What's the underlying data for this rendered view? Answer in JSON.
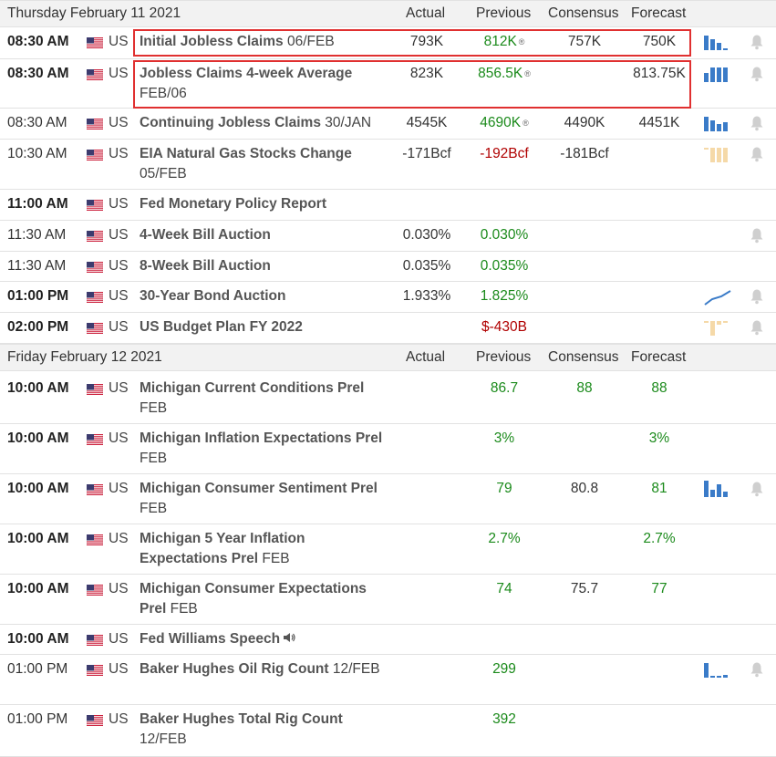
{
  "days": [
    {
      "header": {
        "date": "Thursday February 11 2021",
        "actual": "Actual",
        "previous": "Previous",
        "consensus": "Consensus",
        "forecast": "Forecast"
      },
      "rows": [
        {
          "time": "08:30 AM",
          "bold_time": true,
          "country": "US",
          "event": "Initial Jobless Claims",
          "period": "06/FEB",
          "actual": "793K",
          "previous": "812K",
          "previous_color": "green",
          "previous_revised": true,
          "consensus": "757K",
          "forecast": "750K",
          "forecast_color": "dark",
          "chart": "bars-blue",
          "bell": true
        },
        {
          "time": "08:30 AM",
          "bold_time": true,
          "country": "US",
          "event": "Jobless Claims 4-week Average",
          "period": "FEB/06",
          "actual": "823K",
          "previous": "856.5K",
          "previous_color": "green",
          "previous_revised": true,
          "consensus": "",
          "forecast": "813.75K",
          "forecast_color": "dark",
          "chart": "bars-blue-2",
          "bell": true
        },
        {
          "time": "08:30 AM",
          "bold_time": false,
          "country": "US",
          "event": "Continuing Jobless Claims",
          "period": "30/JAN",
          "actual": "4545K",
          "previous": "4690K",
          "previous_color": "green",
          "previous_revised": true,
          "consensus": "4490K",
          "forecast": "4451K",
          "forecast_color": "dark",
          "chart": "bars-blue-3",
          "bell": true
        },
        {
          "time": "10:30 AM",
          "bold_time": false,
          "country": "US",
          "event": "EIA Natural Gas Stocks Change",
          "period": "05/FEB",
          "actual": "-171Bcf",
          "previous": "-192Bcf",
          "previous_color": "red",
          "previous_revised": false,
          "consensus": "-181Bcf",
          "forecast": "",
          "forecast_color": "dark",
          "chart": "bars-orange-neg",
          "bell": true
        },
        {
          "time": "11:00 AM",
          "bold_time": true,
          "country": "US",
          "event": "Fed Monetary Policy Report",
          "period": "",
          "actual": "",
          "previous": "",
          "previous_color": "green",
          "previous_revised": false,
          "consensus": "",
          "forecast": "",
          "forecast_color": "dark",
          "chart": "",
          "bell": false
        },
        {
          "time": "11:30 AM",
          "bold_time": false,
          "country": "US",
          "event": "4-Week Bill Auction",
          "period": "",
          "actual": "0.030%",
          "previous": "0.030%",
          "previous_color": "green",
          "previous_revised": false,
          "consensus": "",
          "forecast": "",
          "forecast_color": "dark",
          "chart": "",
          "bell": true
        },
        {
          "time": "11:30 AM",
          "bold_time": false,
          "country": "US",
          "event": "8-Week Bill Auction",
          "period": "",
          "actual": "0.035%",
          "previous": "0.035%",
          "previous_color": "green",
          "previous_revised": false,
          "consensus": "",
          "forecast": "",
          "forecast_color": "dark",
          "chart": "",
          "bell": false
        },
        {
          "time": "01:00 PM",
          "bold_time": true,
          "country": "US",
          "event": "30-Year Bond Auction",
          "period": "",
          "actual": "1.933%",
          "previous": "1.825%",
          "previous_color": "green",
          "previous_revised": false,
          "consensus": "",
          "forecast": "",
          "forecast_color": "dark",
          "chart": "line-up",
          "bell": true
        },
        {
          "time": "02:00 PM",
          "bold_time": true,
          "country": "US",
          "event": "US Budget Plan FY 2022",
          "period": "",
          "actual": "",
          "previous": "$-430B",
          "previous_color": "red",
          "previous_revised": false,
          "consensus": "",
          "forecast": "",
          "forecast_color": "dark",
          "chart": "bars-orange-neg-2",
          "bell": true
        }
      ]
    },
    {
      "header": {
        "date": "Friday February 12 2021",
        "actual": "Actual",
        "previous": "Previous",
        "consensus": "Consensus",
        "forecast": "Forecast"
      },
      "rows": [
        {
          "time": "10:00 AM",
          "bold_time": true,
          "country": "US",
          "event": "Michigan Current Conditions Prel",
          "period": "FEB",
          "actual": "",
          "previous": "86.7",
          "previous_color": "green",
          "previous_revised": false,
          "consensus": "88",
          "consensus_color": "green",
          "forecast": "88",
          "forecast_color": "green",
          "chart": "",
          "bell": false
        },
        {
          "time": "10:00 AM",
          "bold_time": true,
          "country": "US",
          "event": "Michigan Inflation Expectations Prel",
          "period": "FEB",
          "actual": "",
          "previous": "3%",
          "previous_color": "green",
          "previous_revised": false,
          "consensus": "",
          "forecast": "3%",
          "forecast_color": "green",
          "chart": "",
          "bell": false
        },
        {
          "time": "10:00 AM",
          "bold_time": true,
          "country": "US",
          "event": "Michigan Consumer Sentiment Prel",
          "period": "FEB",
          "actual": "",
          "previous": "79",
          "previous_color": "green",
          "previous_revised": false,
          "consensus": "80.8",
          "forecast": "81",
          "forecast_color": "green",
          "chart": "bars-blue-4",
          "bell": true
        },
        {
          "time": "10:00 AM",
          "bold_time": true,
          "country": "US",
          "event": "Michigan 5 Year Inflation Expectations Prel",
          "period": "FEB",
          "actual": "",
          "previous": "2.7%",
          "previous_color": "green",
          "previous_revised": false,
          "consensus": "",
          "forecast": "2.7%",
          "forecast_color": "green",
          "chart": "",
          "bell": false
        },
        {
          "time": "10:00 AM",
          "bold_time": true,
          "country": "US",
          "event": "Michigan Consumer Expectations Prel",
          "period": "FEB",
          "actual": "",
          "previous": "74",
          "previous_color": "green",
          "previous_revised": false,
          "consensus": "75.7",
          "forecast": "77",
          "forecast_color": "green",
          "chart": "",
          "bell": false
        },
        {
          "time": "10:00 AM",
          "bold_time": true,
          "country": "US",
          "event": "Fed Williams Speech",
          "period": "",
          "actual": "",
          "previous": "",
          "previous_color": "green",
          "previous_revised": false,
          "consensus": "",
          "forecast": "",
          "forecast_color": "dark",
          "chart": "",
          "bell": false,
          "speaker": true
        },
        {
          "time": "01:00 PM",
          "bold_time": false,
          "country": "US",
          "event": "Baker Hughes Oil Rig Count",
          "period": "12/FEB",
          "actual": "",
          "previous": "299",
          "previous_color": "green",
          "previous_revised": false,
          "consensus": "",
          "forecast": "",
          "forecast_color": "dark",
          "chart": "bars-blue-5",
          "bell": true
        },
        {
          "time": "01:00 PM",
          "bold_time": false,
          "country": "US",
          "event": "Baker Hughes Total Rig Count",
          "period": "12/FEB",
          "actual": "",
          "previous": "392",
          "previous_color": "green",
          "previous_revised": false,
          "consensus": "",
          "forecast": "",
          "forecast_color": "dark",
          "chart": "",
          "bell": false
        }
      ]
    }
  ],
  "icons": {
    "flag": "us-flag-icon",
    "bell": "bell-icon",
    "revised": "revised-marker-icon",
    "speaker": "speaker-icon"
  },
  "colors": {
    "positive": "#1b8a1b",
    "negative": "#b00000",
    "highlight": "#e03030",
    "chart_blue": "#3a7bc8",
    "chart_orange": "#f5d9a8"
  }
}
